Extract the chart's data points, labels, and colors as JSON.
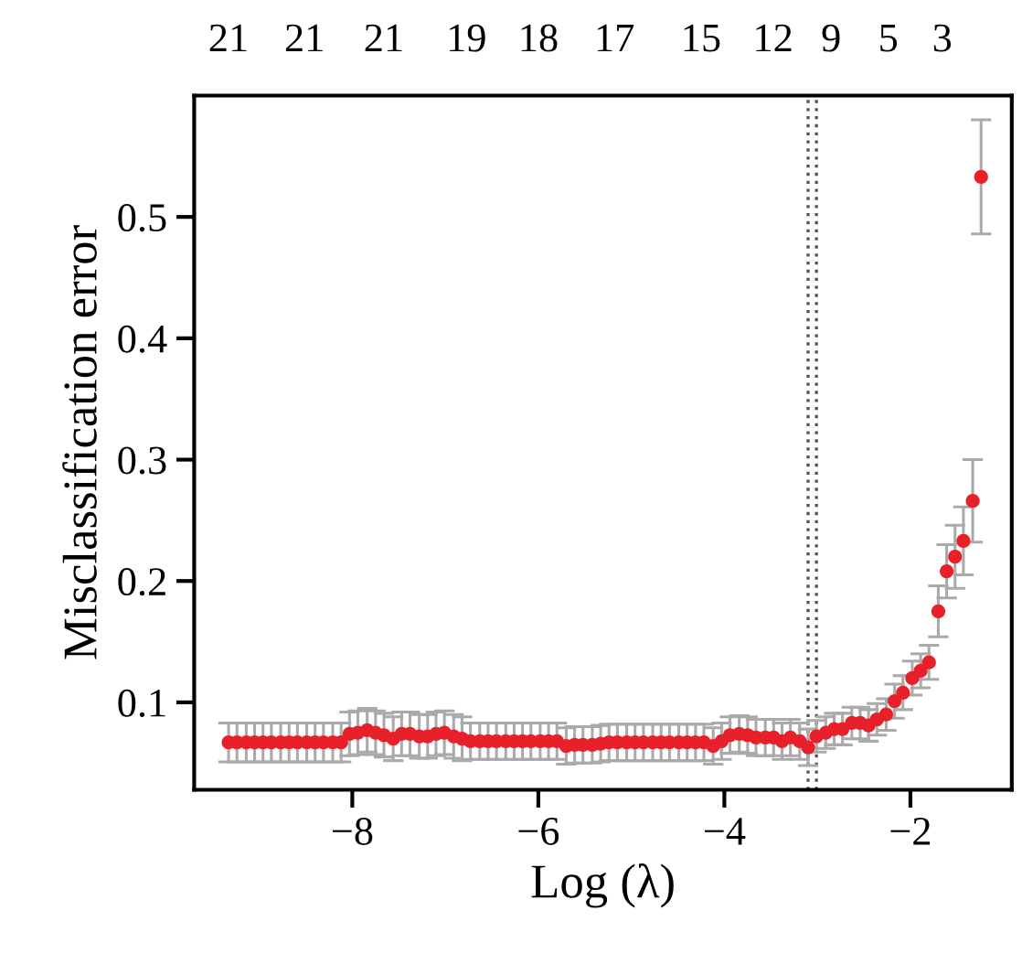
{
  "chart_data": {
    "type": "scatter",
    "xlabel": "Log (λ)",
    "ylabel": "Misclassification error",
    "x": [
      -9.33,
      -9.24,
      -9.14,
      -9.05,
      -8.96,
      -8.87,
      -8.77,
      -8.68,
      -8.59,
      -8.49,
      -8.4,
      -8.31,
      -8.21,
      -8.12,
      -8.03,
      -7.94,
      -7.84,
      -7.75,
      -7.66,
      -7.56,
      -7.47,
      -7.38,
      -7.28,
      -7.19,
      -7.1,
      -7.01,
      -6.91,
      -6.82,
      -6.73,
      -6.63,
      -6.54,
      -6.45,
      -6.35,
      -6.26,
      -6.17,
      -6.08,
      -5.98,
      -5.89,
      -5.8,
      -5.7,
      -5.61,
      -5.52,
      -5.42,
      -5.33,
      -5.24,
      -5.15,
      -5.05,
      -4.96,
      -4.87,
      -4.77,
      -4.68,
      -4.59,
      -4.49,
      -4.4,
      -4.31,
      -4.22,
      -4.12,
      -4.03,
      -3.94,
      -3.84,
      -3.75,
      -3.66,
      -3.56,
      -3.47,
      -3.38,
      -3.29,
      -3.19,
      -3.1,
      -3.01,
      -2.91,
      -2.82,
      -2.73,
      -2.63,
      -2.54,
      -2.45,
      -2.36,
      -2.26,
      -2.17,
      -2.08,
      -1.98,
      -1.89,
      -1.8,
      -1.7,
      -1.61,
      -1.52,
      -1.43,
      -1.33,
      -1.24
    ],
    "series": [
      {
        "color": "#e8202a",
        "marker": "circle",
        "values": [
          0.067,
          0.067,
          0.067,
          0.067,
          0.067,
          0.067,
          0.067,
          0.067,
          0.067,
          0.067,
          0.067,
          0.067,
          0.067,
          0.067,
          0.074,
          0.075,
          0.077,
          0.075,
          0.073,
          0.07,
          0.074,
          0.074,
          0.072,
          0.072,
          0.074,
          0.075,
          0.072,
          0.07,
          0.068,
          0.068,
          0.068,
          0.068,
          0.068,
          0.068,
          0.068,
          0.068,
          0.068,
          0.068,
          0.068,
          0.064,
          0.065,
          0.065,
          0.065,
          0.066,
          0.067,
          0.067,
          0.067,
          0.067,
          0.067,
          0.067,
          0.067,
          0.067,
          0.067,
          0.067,
          0.067,
          0.067,
          0.064,
          0.068,
          0.073,
          0.074,
          0.073,
          0.071,
          0.071,
          0.071,
          0.068,
          0.071,
          0.068,
          0.063,
          0.072,
          0.075,
          0.078,
          0.078,
          0.083,
          0.083,
          0.081,
          0.086,
          0.09,
          0.101,
          0.108,
          0.12,
          0.126,
          0.133,
          0.175,
          0.208,
          0.22,
          0.233,
          0.266,
          0.533
        ],
        "errors": [
          0.016,
          0.016,
          0.016,
          0.016,
          0.016,
          0.016,
          0.016,
          0.016,
          0.016,
          0.016,
          0.016,
          0.016,
          0.016,
          0.016,
          0.018,
          0.018,
          0.018,
          0.018,
          0.018,
          0.018,
          0.018,
          0.018,
          0.018,
          0.018,
          0.018,
          0.018,
          0.018,
          0.018,
          0.015,
          0.015,
          0.015,
          0.015,
          0.015,
          0.015,
          0.015,
          0.015,
          0.015,
          0.015,
          0.015,
          0.015,
          0.015,
          0.015,
          0.015,
          0.015,
          0.015,
          0.015,
          0.015,
          0.015,
          0.015,
          0.015,
          0.015,
          0.015,
          0.015,
          0.015,
          0.015,
          0.015,
          0.015,
          0.015,
          0.015,
          0.015,
          0.015,
          0.015,
          0.015,
          0.015,
          0.015,
          0.015,
          0.015,
          0.015,
          0.013,
          0.013,
          0.013,
          0.013,
          0.013,
          0.013,
          0.013,
          0.013,
          0.013,
          0.014,
          0.014,
          0.014,
          0.014,
          0.014,
          0.021,
          0.022,
          0.026,
          0.028,
          0.034,
          0.047
        ]
      }
    ],
    "xlim": [
      -9.7,
      -0.91
    ],
    "xticks": [
      {
        "value": -8,
        "label": "−8"
      },
      {
        "value": -6,
        "label": "−6"
      },
      {
        "value": -4,
        "label": "−4"
      },
      {
        "value": -2,
        "label": "−2"
      }
    ],
    "ylim": [
      0.028,
      0.6
    ],
    "yticks": [
      0.1,
      0.2,
      0.3,
      0.4,
      0.5
    ],
    "annotations": [
      "21",
      "21",
      "21",
      "19",
      "18",
      "17",
      "15",
      "12",
      "9",
      "5",
      "3"
    ],
    "ref_lines": [
      {
        "axis": "x",
        "value": -3.1,
        "color": "#555555",
        "line_style": "dotted"
      },
      {
        "axis": "x",
        "value": -3.01,
        "color": "#555555",
        "line_style": "dotted"
      }
    ],
    "grid": false,
    "legend": false
  }
}
